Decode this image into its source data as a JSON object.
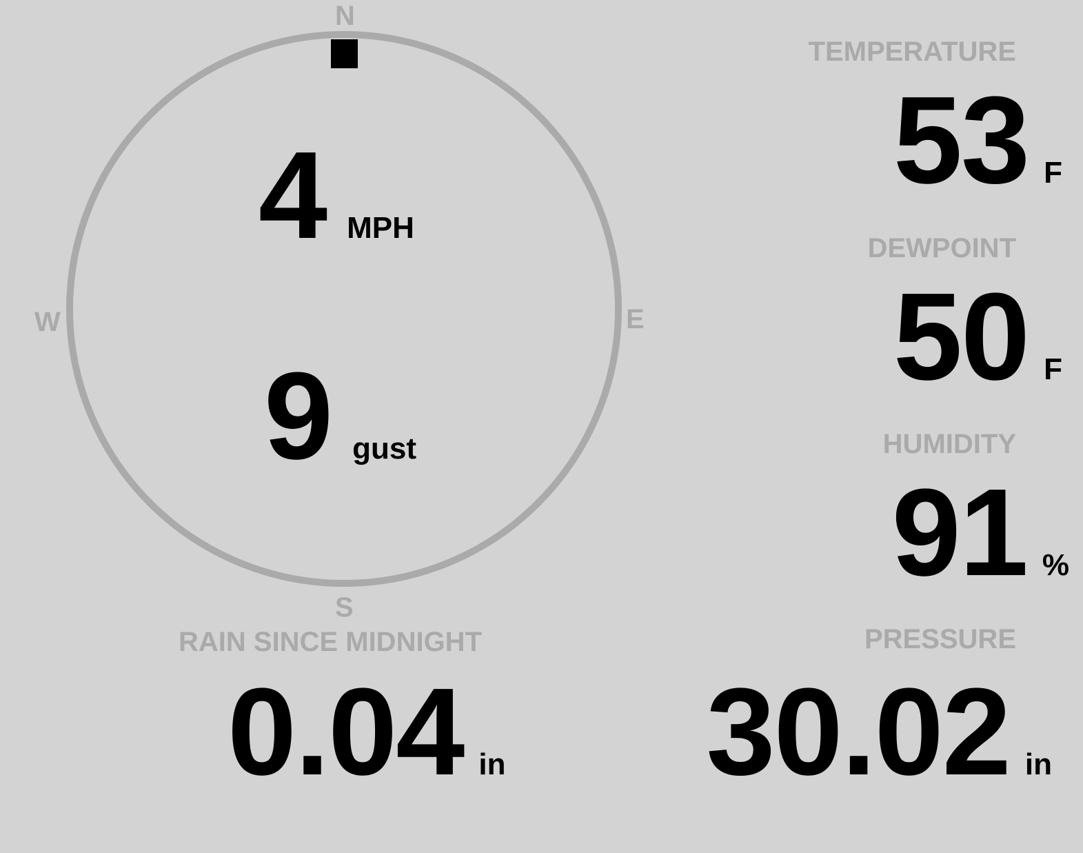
{
  "wind": {
    "compass": {
      "n": "N",
      "e": "E",
      "s": "S",
      "w": "W"
    },
    "direction_degrees": 0,
    "speed": "4",
    "speed_unit": "MPH",
    "gust": "9",
    "gust_unit": "gust"
  },
  "temperature": {
    "label": "TEMPERATURE",
    "value": "53",
    "unit": "F"
  },
  "dewpoint": {
    "label": "DEWPOINT",
    "value": "50",
    "unit": "F"
  },
  "humidity": {
    "label": "HUMIDITY",
    "value": "91",
    "unit": "%"
  },
  "rain": {
    "label": "RAIN SINCE MIDNIGHT",
    "value": "0.04",
    "unit": "in"
  },
  "pressure": {
    "label": "PRESSURE",
    "value": "30.02",
    "unit": "in"
  },
  "colors": {
    "background": "#d3d3d3",
    "label": "#aaaaaa",
    "value": "#000000",
    "ring": "#aaaaaa"
  }
}
